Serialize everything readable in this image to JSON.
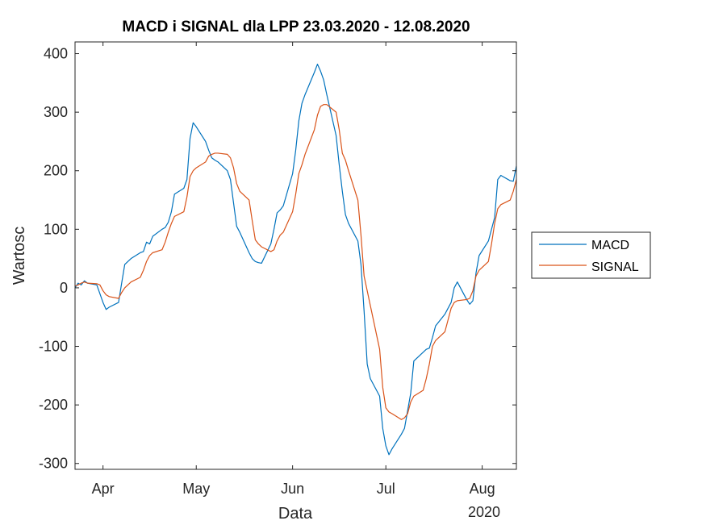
{
  "chart_data": {
    "type": "line",
    "title": "MACD i SIGNAL dla LPP 23.03.2020 - 12.08.2020",
    "xlabel": "Data",
    "ylabel": "Wartosc",
    "year_label": "2020",
    "x_range": [
      "2020-03-23",
      "2020-08-12"
    ],
    "ylim": [
      -310,
      420
    ],
    "y_ticks": [
      -300,
      -200,
      -100,
      0,
      100,
      200,
      300,
      400
    ],
    "x_ticks": [
      {
        "date": "2020-04-01",
        "label": "Apr"
      },
      {
        "date": "2020-05-01",
        "label": "May"
      },
      {
        "date": "2020-06-01",
        "label": "Jun"
      },
      {
        "date": "2020-07-01",
        "label": "Jul"
      },
      {
        "date": "2020-08-01",
        "label": "Aug"
      }
    ],
    "grid": false,
    "legend_position": "outside-right",
    "series": [
      {
        "name": "MACD",
        "color": "#0072BD",
        "points": [
          [
            "2020-03-23",
            0
          ],
          [
            "2020-03-24",
            8
          ],
          [
            "2020-03-25",
            5
          ],
          [
            "2020-03-26",
            12
          ],
          [
            "2020-03-27",
            8
          ],
          [
            "2020-03-30",
            5
          ],
          [
            "2020-03-31",
            -10
          ],
          [
            "2020-04-01",
            -25
          ],
          [
            "2020-04-02",
            -37
          ],
          [
            "2020-04-03",
            -33
          ],
          [
            "2020-04-06",
            -25
          ],
          [
            "2020-04-07",
            8
          ],
          [
            "2020-04-08",
            40
          ],
          [
            "2020-04-09",
            45
          ],
          [
            "2020-04-10",
            50
          ],
          [
            "2020-04-13",
            60
          ],
          [
            "2020-04-14",
            62
          ],
          [
            "2020-04-15",
            78
          ],
          [
            "2020-04-16",
            75
          ],
          [
            "2020-04-17",
            88
          ],
          [
            "2020-04-20",
            100
          ],
          [
            "2020-04-21",
            103
          ],
          [
            "2020-04-22",
            112
          ],
          [
            "2020-04-23",
            130
          ],
          [
            "2020-04-24",
            160
          ],
          [
            "2020-04-27",
            170
          ],
          [
            "2020-04-28",
            185
          ],
          [
            "2020-04-29",
            255
          ],
          [
            "2020-04-30",
            282
          ],
          [
            "2020-05-01",
            275
          ],
          [
            "2020-05-04",
            250
          ],
          [
            "2020-05-05",
            235
          ],
          [
            "2020-05-06",
            222
          ],
          [
            "2020-05-07",
            218
          ],
          [
            "2020-05-08",
            215
          ],
          [
            "2020-05-11",
            200
          ],
          [
            "2020-05-12",
            185
          ],
          [
            "2020-05-13",
            145
          ],
          [
            "2020-05-14",
            105
          ],
          [
            "2020-05-15",
            95
          ],
          [
            "2020-05-18",
            60
          ],
          [
            "2020-05-19",
            50
          ],
          [
            "2020-05-20",
            45
          ],
          [
            "2020-05-21",
            43
          ],
          [
            "2020-05-22",
            42
          ],
          [
            "2020-05-25",
            75
          ],
          [
            "2020-05-26",
            100
          ],
          [
            "2020-05-27",
            128
          ],
          [
            "2020-05-28",
            133
          ],
          [
            "2020-05-29",
            140
          ],
          [
            "2020-06-01",
            195
          ],
          [
            "2020-06-02",
            235
          ],
          [
            "2020-06-03",
            285
          ],
          [
            "2020-06-04",
            315
          ],
          [
            "2020-06-05",
            330
          ],
          [
            "2020-06-08",
            368
          ],
          [
            "2020-06-09",
            382
          ],
          [
            "2020-06-10",
            370
          ],
          [
            "2020-06-11",
            355
          ],
          [
            "2020-06-12",
            330
          ],
          [
            "2020-06-15",
            260
          ],
          [
            "2020-06-16",
            210
          ],
          [
            "2020-06-17",
            165
          ],
          [
            "2020-06-18",
            125
          ],
          [
            "2020-06-19",
            110
          ],
          [
            "2020-06-22",
            80
          ],
          [
            "2020-06-23",
            40
          ],
          [
            "2020-06-24",
            -40
          ],
          [
            "2020-06-25",
            -130
          ],
          [
            "2020-06-26",
            -155
          ],
          [
            "2020-06-29",
            -185
          ],
          [
            "2020-06-30",
            -240
          ],
          [
            "2020-07-01",
            -270
          ],
          [
            "2020-07-02",
            -285
          ],
          [
            "2020-07-03",
            -275
          ],
          [
            "2020-07-06",
            -250
          ],
          [
            "2020-07-07",
            -240
          ],
          [
            "2020-07-08",
            -210
          ],
          [
            "2020-07-09",
            -180
          ],
          [
            "2020-07-10",
            -125
          ],
          [
            "2020-07-13",
            -110
          ],
          [
            "2020-07-14",
            -105
          ],
          [
            "2020-07-15",
            -103
          ],
          [
            "2020-07-16",
            -85
          ],
          [
            "2020-07-17",
            -65
          ],
          [
            "2020-07-20",
            -45
          ],
          [
            "2020-07-21",
            -35
          ],
          [
            "2020-07-22",
            -25
          ],
          [
            "2020-07-23",
            0
          ],
          [
            "2020-07-24",
            10
          ],
          [
            "2020-07-27",
            -20
          ],
          [
            "2020-07-28",
            -28
          ],
          [
            "2020-07-29",
            -22
          ],
          [
            "2020-07-30",
            25
          ],
          [
            "2020-07-31",
            55
          ],
          [
            "2020-08-03",
            80
          ],
          [
            "2020-08-04",
            100
          ],
          [
            "2020-08-05",
            120
          ],
          [
            "2020-08-06",
            185
          ],
          [
            "2020-08-07",
            192
          ],
          [
            "2020-08-10",
            183
          ],
          [
            "2020-08-11",
            182
          ],
          [
            "2020-08-12",
            208
          ]
        ]
      },
      {
        "name": "SIGNAL",
        "color": "#D95319",
        "points": [
          [
            "2020-03-23",
            3
          ],
          [
            "2020-03-24",
            5
          ],
          [
            "2020-03-25",
            8
          ],
          [
            "2020-03-26",
            10
          ],
          [
            "2020-03-27",
            8
          ],
          [
            "2020-03-30",
            7
          ],
          [
            "2020-03-31",
            5
          ],
          [
            "2020-04-01",
            -5
          ],
          [
            "2020-04-02",
            -12
          ],
          [
            "2020-04-03",
            -15
          ],
          [
            "2020-04-06",
            -18
          ],
          [
            "2020-04-07",
            -8
          ],
          [
            "2020-04-08",
            0
          ],
          [
            "2020-04-09",
            5
          ],
          [
            "2020-04-10",
            10
          ],
          [
            "2020-04-13",
            18
          ],
          [
            "2020-04-14",
            30
          ],
          [
            "2020-04-15",
            45
          ],
          [
            "2020-04-16",
            55
          ],
          [
            "2020-04-17",
            60
          ],
          [
            "2020-04-20",
            65
          ],
          [
            "2020-04-21",
            78
          ],
          [
            "2020-04-22",
            95
          ],
          [
            "2020-04-23",
            110
          ],
          [
            "2020-04-24",
            122
          ],
          [
            "2020-04-27",
            130
          ],
          [
            "2020-04-28",
            155
          ],
          [
            "2020-04-29",
            190
          ],
          [
            "2020-04-30",
            200
          ],
          [
            "2020-05-01",
            205
          ],
          [
            "2020-05-04",
            215
          ],
          [
            "2020-05-05",
            225
          ],
          [
            "2020-05-06",
            228
          ],
          [
            "2020-05-07",
            230
          ],
          [
            "2020-05-08",
            230
          ],
          [
            "2020-05-11",
            228
          ],
          [
            "2020-05-12",
            222
          ],
          [
            "2020-05-13",
            205
          ],
          [
            "2020-05-14",
            178
          ],
          [
            "2020-05-15",
            165
          ],
          [
            "2020-05-18",
            150
          ],
          [
            "2020-05-19",
            115
          ],
          [
            "2020-05-20",
            82
          ],
          [
            "2020-05-21",
            75
          ],
          [
            "2020-05-22",
            70
          ],
          [
            "2020-05-25",
            62
          ],
          [
            "2020-05-26",
            65
          ],
          [
            "2020-05-27",
            80
          ],
          [
            "2020-05-28",
            90
          ],
          [
            "2020-05-29",
            95
          ],
          [
            "2020-06-01",
            130
          ],
          [
            "2020-06-02",
            160
          ],
          [
            "2020-06-03",
            195
          ],
          [
            "2020-06-04",
            210
          ],
          [
            "2020-06-05",
            228
          ],
          [
            "2020-06-08",
            270
          ],
          [
            "2020-06-09",
            295
          ],
          [
            "2020-06-10",
            310
          ],
          [
            "2020-06-11",
            313
          ],
          [
            "2020-06-12",
            313
          ],
          [
            "2020-06-15",
            300
          ],
          [
            "2020-06-16",
            270
          ],
          [
            "2020-06-17",
            230
          ],
          [
            "2020-06-18",
            218
          ],
          [
            "2020-06-19",
            200
          ],
          [
            "2020-06-22",
            150
          ],
          [
            "2020-06-23",
            90
          ],
          [
            "2020-06-24",
            20
          ],
          [
            "2020-06-25",
            -5
          ],
          [
            "2020-06-26",
            -30
          ],
          [
            "2020-06-29",
            -105
          ],
          [
            "2020-06-30",
            -170
          ],
          [
            "2020-07-01",
            -205
          ],
          [
            "2020-07-02",
            -212
          ],
          [
            "2020-07-03",
            -215
          ],
          [
            "2020-07-06",
            -225
          ],
          [
            "2020-07-07",
            -222
          ],
          [
            "2020-07-08",
            -215
          ],
          [
            "2020-07-09",
            -195
          ],
          [
            "2020-07-10",
            -185
          ],
          [
            "2020-07-13",
            -175
          ],
          [
            "2020-07-14",
            -155
          ],
          [
            "2020-07-15",
            -130
          ],
          [
            "2020-07-16",
            -100
          ],
          [
            "2020-07-17",
            -90
          ],
          [
            "2020-07-20",
            -75
          ],
          [
            "2020-07-21",
            -55
          ],
          [
            "2020-07-22",
            -35
          ],
          [
            "2020-07-23",
            -25
          ],
          [
            "2020-07-24",
            -22
          ],
          [
            "2020-07-27",
            -20
          ],
          [
            "2020-07-28",
            -18
          ],
          [
            "2020-07-29",
            -5
          ],
          [
            "2020-07-30",
            20
          ],
          [
            "2020-07-31",
            30
          ],
          [
            "2020-08-03",
            45
          ],
          [
            "2020-08-04",
            75
          ],
          [
            "2020-08-05",
            110
          ],
          [
            "2020-08-06",
            135
          ],
          [
            "2020-08-07",
            142
          ],
          [
            "2020-08-10",
            150
          ],
          [
            "2020-08-11",
            165
          ],
          [
            "2020-08-12",
            185
          ]
        ]
      }
    ]
  }
}
